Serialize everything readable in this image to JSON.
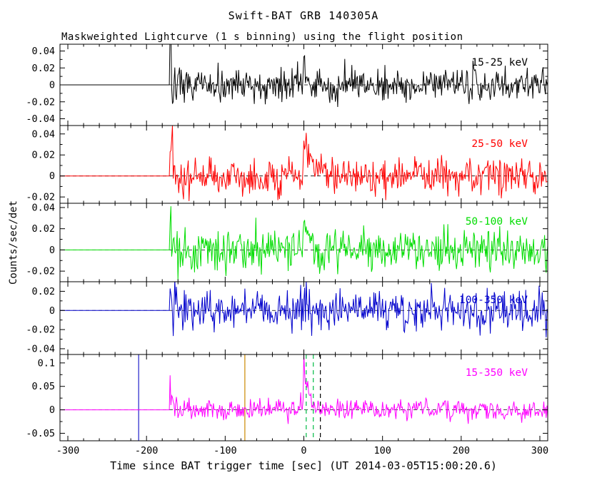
{
  "title": "Swift-BAT GRB 140305A",
  "subtitle": "Maskweighted Lightcurve (1 s binning) using the flight position",
  "xlabel": "Time since BAT trigger time [sec] (UT 2014-03-05T15:00:20.6)",
  "ylabel": "Counts/sec/det",
  "colors": {
    "background": "#ffffff",
    "frame": "#000000",
    "zero_line": "#000000"
  },
  "chart_data": {
    "type": "line",
    "title": "Swift-BAT GRB 140305A",
    "subtitle": "Maskweighted Lightcurve (1 s binning) using the flight position",
    "xlabel": "Time since BAT trigger time [sec] (UT 2014-03-05T15:00:20.6)",
    "ylabel": "Counts/sec/det",
    "x_range": [
      -310,
      310
    ],
    "x_major_ticks": [
      -300,
      -200,
      -100,
      0,
      100,
      200,
      300
    ],
    "x_minor_step": 20,
    "bin_seconds": 1,
    "data_start_time": -170,
    "burst_time": 0,
    "grid": false,
    "legend_position": "in-panel-right",
    "panels": [
      {
        "label": "15-25 keV",
        "color": "#000000",
        "ylim": [
          -0.048,
          0.048
        ],
        "yticks": [
          -0.04,
          -0.02,
          0,
          0.02,
          0.04
        ],
        "noise_sigma": 0.01,
        "burst_amp": 0.03,
        "burst_tau": 3,
        "start_spike_amp": 0.022
      },
      {
        "label": "25-50 keV",
        "color": "#ff0000",
        "ylim": [
          -0.026,
          0.048
        ],
        "yticks": [
          -0.02,
          0,
          0.02,
          0.04
        ],
        "noise_sigma": 0.009,
        "burst_amp": 0.045,
        "burst_tau": 10,
        "start_spike_amp": 0.032
      },
      {
        "label": "50-100 keV",
        "color": "#00dd00",
        "ylim": [
          -0.03,
          0.044
        ],
        "yticks": [
          -0.02,
          0,
          0.02,
          0.04
        ],
        "noise_sigma": 0.01,
        "burst_amp": 0.032,
        "burst_tau": 6,
        "start_spike_amp": 0.03
      },
      {
        "label": "100-350 keV",
        "color": "#0000cc",
        "ylim": [
          -0.046,
          0.03
        ],
        "yticks": [
          -0.04,
          -0.02,
          0,
          0.02
        ],
        "noise_sigma": 0.01,
        "burst_amp": 0.015,
        "burst_tau": 2.5,
        "start_spike_amp": 0.03
      },
      {
        "label": "15-350 keV",
        "color": "#ff00ff",
        "ylim": [
          -0.066,
          0.118
        ],
        "yticks": [
          -0.05,
          0,
          0.05,
          0.1
        ],
        "noise_sigma": 0.012,
        "burst_amp": 0.105,
        "burst_tau": 5,
        "start_spike_amp": 0.038
      }
    ],
    "annotations": [
      {
        "panel": 4,
        "type": "vline",
        "x": -210,
        "color": "#2222cc",
        "style": "solid"
      },
      {
        "panel": 4,
        "type": "vline",
        "x": -75,
        "color": "#cc8800",
        "style": "solid"
      },
      {
        "panel": 4,
        "type": "vline",
        "x": 3,
        "color": "#00bb44",
        "style": "dashed"
      },
      {
        "panel": 4,
        "type": "vline",
        "x": 12,
        "color": "#00bb44",
        "style": "dashed"
      },
      {
        "panel": 4,
        "type": "vline",
        "x": 21,
        "color": "#000000",
        "style": "dashed"
      }
    ],
    "zero_line": {
      "style": "dashed",
      "color": "#000000"
    }
  }
}
